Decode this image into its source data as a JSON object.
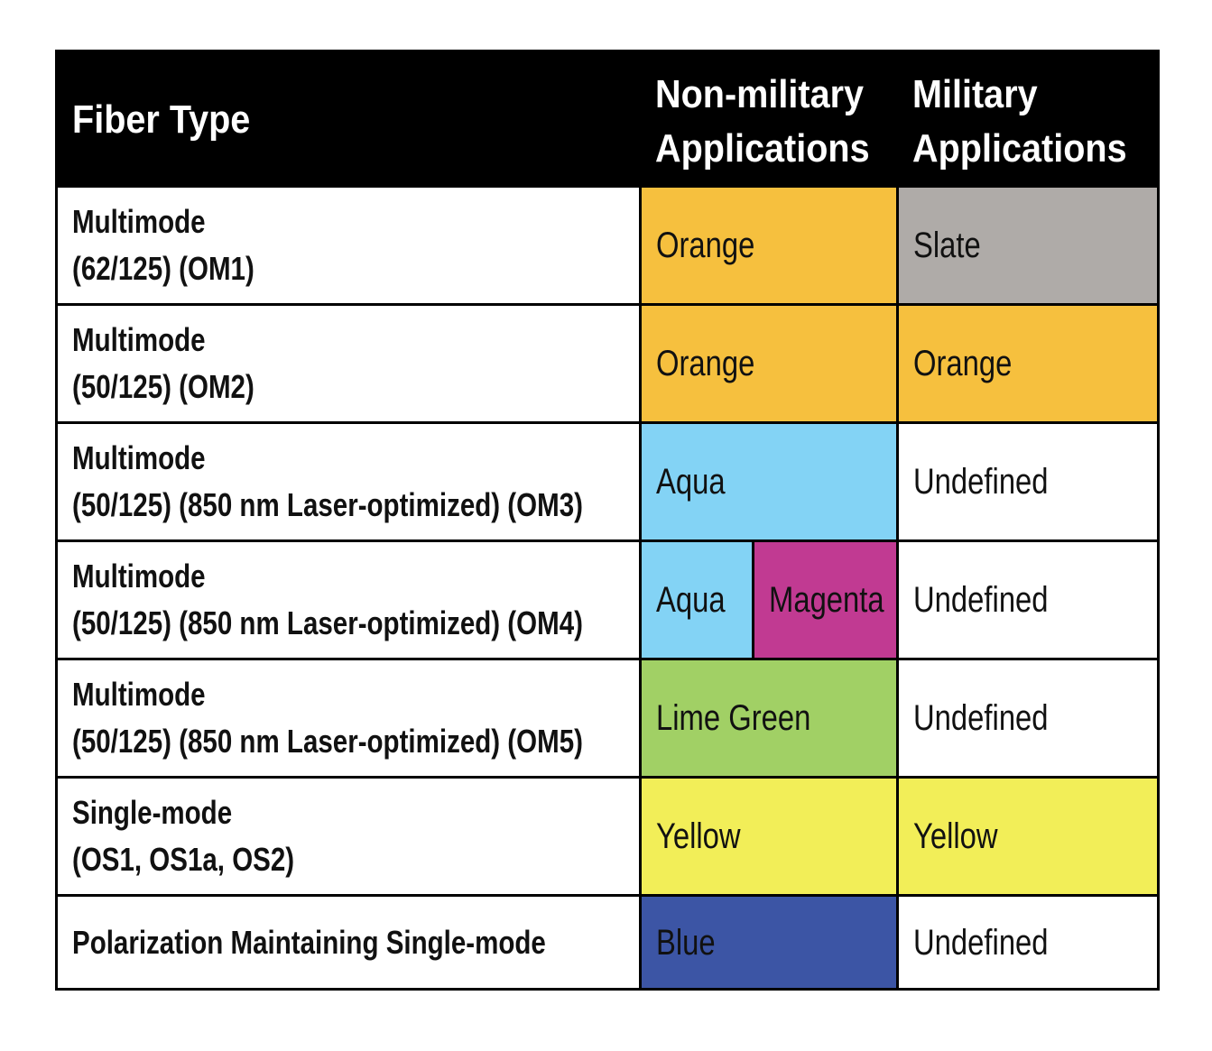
{
  "header": {
    "fiber_type": "Fiber Type",
    "non_military_line1": "Non-military",
    "non_military_line2": "Applications",
    "military_line1": "Military",
    "military_line2": "Applications"
  },
  "rows": [
    {
      "fiber_line1": "Multimode",
      "fiber_line2": "(62/125)  (OM1)",
      "non_military": "Orange",
      "non_military_color": "#F6C03E",
      "military": "Slate",
      "military_color": "#AFABA8"
    },
    {
      "fiber_line1": "Multimode",
      "fiber_line2": "(50/125)  (OM2)",
      "non_military": "Orange",
      "non_military_color": "#F6C03E",
      "military": "Orange",
      "military_color": "#F6C03E"
    },
    {
      "fiber_line1": "Multimode",
      "fiber_line2": "(50/125) (850 nm Laser-optimized)  (OM3)",
      "non_military": "Aqua",
      "non_military_color": "#83D3F5",
      "military": "Undefined",
      "military_color": "#FFFFFF"
    },
    {
      "fiber_line1": "Multimode",
      "fiber_line2": "(50/125) (850 nm Laser-optimized)  (OM4)",
      "non_military": "Aqua",
      "non_military_color": "#83D3F5",
      "non_military_alt": "Magenta",
      "non_military_alt_color": "#C13A92",
      "military": "Undefined",
      "military_color": "#FFFFFF"
    },
    {
      "fiber_line1": "Multimode",
      "fiber_line2": "(50/125) (850 nm Laser-optimized)  (OM5)",
      "non_military": "Lime Green",
      "non_military_color": "#A1D065",
      "military": "Undefined",
      "military_color": "#FFFFFF"
    },
    {
      "fiber_line1": "Single-mode",
      "fiber_line2": "(OS1, OS1a, OS2)",
      "non_military": "Yellow",
      "non_military_color": "#F2EE58",
      "military": "Yellow",
      "military_color": "#F2EE58"
    },
    {
      "fiber_line1": "Polarization Maintaining Single-mode",
      "non_military": "Blue",
      "non_military_color": "#3C55A5",
      "military": "Undefined",
      "military_color": "#FFFFFF"
    }
  ]
}
